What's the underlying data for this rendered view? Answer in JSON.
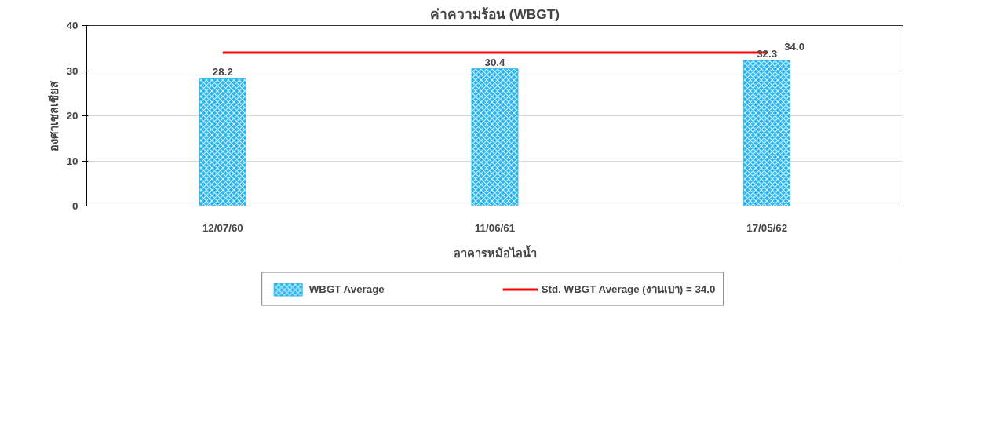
{
  "chart_data": {
    "type": "bar",
    "title": "ค่าความร้อน (WBGT)",
    "xlabel": "อาคารหม้อไอน้ำ",
    "ylabel": "องศาเซลเซียส",
    "categories": [
      "12/07/60",
      "11/06/61",
      "17/05/62"
    ],
    "series": [
      {
        "name": "WBGT Average",
        "color": "#29b6f0",
        "values": [
          28.2,
          30.4,
          32.3
        ],
        "value_labels": [
          "28.2",
          "30.4",
          "32.3"
        ]
      },
      {
        "name": "Std. WBGT Average (งานเบา) = 34.0",
        "type": "line",
        "color": "#ff0000",
        "values": [
          34.0,
          34.0,
          34.0
        ],
        "value_labels": [
          null,
          null,
          "34.0"
        ]
      }
    ],
    "ylim": [
      0,
      40
    ],
    "yticks": [
      0,
      10,
      20,
      30,
      40
    ],
    "grid": "y",
    "legend": "bottom",
    "line_style": "solid"
  }
}
